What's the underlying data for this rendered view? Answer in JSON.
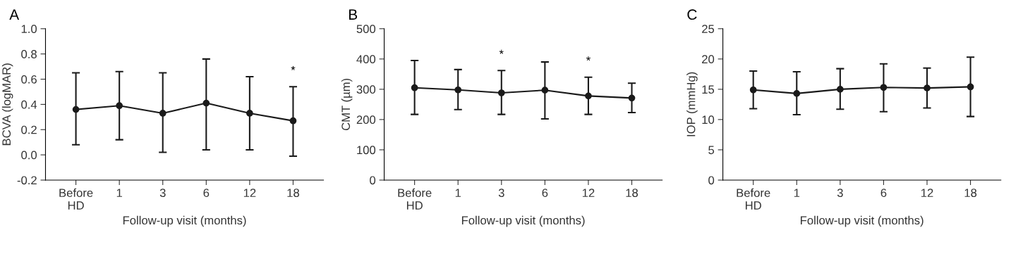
{
  "chart_data": [
    {
      "type": "line",
      "title": "A",
      "xlabel": "Follow-up visit (months)",
      "ylabel": "BCVA (logMAR)",
      "categories": [
        "Before\nHD",
        "1",
        "3",
        "6",
        "12",
        "18"
      ],
      "series": [
        {
          "color": "#1a1a1a",
          "values": [
            0.36,
            0.39,
            0.33,
            0.41,
            0.33,
            0.27
          ],
          "errors": [
            [
              0.08,
              0.65
            ],
            [
              0.12,
              0.66
            ],
            [
              0.02,
              0.65
            ],
            [
              0.04,
              0.76
            ],
            [
              0.04,
              0.62
            ],
            [
              -0.01,
              0.54
            ]
          ]
        }
      ],
      "ylim": [
        -0.2,
        1.0
      ],
      "yticks": [
        {
          "value": -0.2,
          "label": "-0.2"
        },
        {
          "value": 0.0,
          "label": "0.0"
        },
        {
          "value": 0.2,
          "label": "0.2"
        },
        {
          "value": 0.4,
          "label": "0.4"
        },
        {
          "value": 0.6,
          "label": "0.6"
        },
        {
          "value": 0.8,
          "label": "0.8"
        },
        {
          "value": 1.0,
          "label": "1.0"
        }
      ],
      "annotations": [
        {
          "text": "*",
          "x": "18",
          "y": 0.54
        }
      ],
      "marker": "circle",
      "grid": false,
      "legend": false
    },
    {
      "type": "line",
      "title": "B",
      "xlabel": "Follow-up visit (months)",
      "ylabel": "CMT (µm)",
      "categories": [
        "Before\nHD",
        "1",
        "3",
        "6",
        "12",
        "18"
      ],
      "series": [
        {
          "color": "#1a1a1a",
          "values": [
            305,
            298,
            288,
            297,
            278,
            271
          ],
          "errors": [
            [
              217,
              395
            ],
            [
              233,
              365
            ],
            [
              217,
              362
            ],
            [
              202,
              390
            ],
            [
              217,
              340
            ],
            [
              223,
              320
            ]
          ]
        }
      ],
      "ylim": [
        0,
        500
      ],
      "yticks": [
        0,
        100,
        200,
        300,
        400,
        500
      ],
      "annotations": [
        {
          "text": "*",
          "x": "3",
          "y": 362
        },
        {
          "text": "*",
          "x": "12",
          "y": 340
        }
      ],
      "marker": "circle",
      "grid": false,
      "legend": false
    },
    {
      "type": "line",
      "title": "C",
      "xlabel": "Follow-up visit (months)",
      "ylabel": "IOP (mmHg)",
      "categories": [
        "Before\nHD",
        "1",
        "3",
        "6",
        "12",
        "18"
      ],
      "series": [
        {
          "color": "#1a1a1a",
          "values": [
            14.9,
            14.3,
            15.0,
            15.3,
            15.2,
            15.4
          ],
          "errors": [
            [
              11.8,
              18.0
            ],
            [
              10.8,
              17.9
            ],
            [
              11.7,
              18.4
            ],
            [
              11.3,
              19.2
            ],
            [
              11.9,
              18.5
            ],
            [
              10.5,
              20.3
            ]
          ]
        }
      ],
      "ylim": [
        0,
        25
      ],
      "yticks": [
        0,
        5,
        10,
        15,
        20,
        25
      ],
      "marker": "circle",
      "grid": false,
      "legend": false
    }
  ]
}
